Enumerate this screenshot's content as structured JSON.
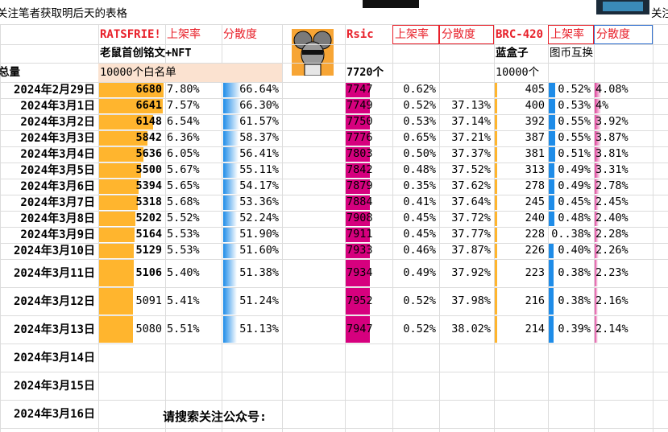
{
  "header_note": "关注笔者获取明后天的表格",
  "header_note_right": "关注",
  "groups": [
    {
      "name": "RATSFRIE!",
      "col2": "上架率",
      "col3": "分散度",
      "desc": "老鼠首创铭文+NFT",
      "total": "10000个白名单"
    },
    {
      "name": "Rsic",
      "col2": "上架率",
      "col3": "分散度",
      "total": "7720个"
    },
    {
      "name": "BRC-420",
      "col2": "上架率",
      "col3": "分散度",
      "desc": "蓝盒子",
      "desc2": "图币互换",
      "total": "10000个"
    }
  ],
  "total_label": "总量",
  "dates": [
    "2024年2月29日",
    "2024年3月1日",
    "2024年3月2日",
    "2024年3月3日",
    "2024年3月4日",
    "2024年3月5日",
    "2024年3月6日",
    "2024年3月7日",
    "2024年3月8日",
    "2024年3月9日",
    "2024年3月10日",
    "2024年3月11日",
    "2024年3月12日",
    "2024年3月13日",
    "2024年3月14日",
    "2024年3月15日",
    "2024年3月16日"
  ],
  "rows": [
    [
      6680,
      "7.80%",
      "66.64%",
      7747,
      "0.62%",
      null,
      405,
      "0.52%",
      "4.08%"
    ],
    [
      6641,
      "7.57%",
      "66.30%",
      7749,
      "0.52%",
      "37.13%",
      400,
      "0.53%",
      "4%"
    ],
    [
      6148,
      "6.54%",
      "61.57%",
      7750,
      "0.53%",
      "37.14%",
      392,
      "0.55%",
      "3.92%"
    ],
    [
      5842,
      "6.36%",
      "58.37%",
      7776,
      "0.65%",
      "37.21%",
      387,
      "0.55%",
      "3.87%"
    ],
    [
      5636,
      "6.05%",
      "56.41%",
      7803,
      "0.50%",
      "37.37%",
      381,
      "0.51%",
      "3.81%"
    ],
    [
      5500,
      "5.67%",
      "55.11%",
      7842,
      "0.48%",
      "37.52%",
      313,
      "0.49%",
      "3.31%"
    ],
    [
      5394,
      "5.65%",
      "54.17%",
      7879,
      "0.35%",
      "37.62%",
      278,
      "0.49%",
      "2.78%"
    ],
    [
      5318,
      "5.68%",
      "53.36%",
      7884,
      "0.41%",
      "37.64%",
      245,
      "0.45%",
      "2.45%"
    ],
    [
      5202,
      "5.52%",
      "52.24%",
      7908,
      "0.45%",
      "37.72%",
      240,
      "0.48%",
      "2.40%"
    ],
    [
      5164,
      "5.53%",
      "51.90%",
      7911,
      "0.45%",
      "37.77%",
      228,
      "0..38%",
      "2.28%"
    ],
    [
      5129,
      "5.53%",
      "51.60%",
      7933,
      "0.46%",
      "37.87%",
      226,
      "0.40%",
      "2.26%"
    ],
    [
      5106,
      "5.40%",
      "51.38%",
      7934,
      "0.49%",
      "37.92%",
      223,
      "0.38%",
      "2.23%"
    ],
    [
      5091,
      "5.41%",
      "51.24%",
      7952,
      "0.52%",
      "37.98%",
      216,
      "0.38%",
      "2.16%"
    ],
    [
      5080,
      "5.51%",
      "51.13%",
      7947,
      "0.52%",
      "38.02%",
      214,
      "0.39%",
      "2.14%"
    ]
  ],
  "footer_note": "请搜索关注公众号:"
}
